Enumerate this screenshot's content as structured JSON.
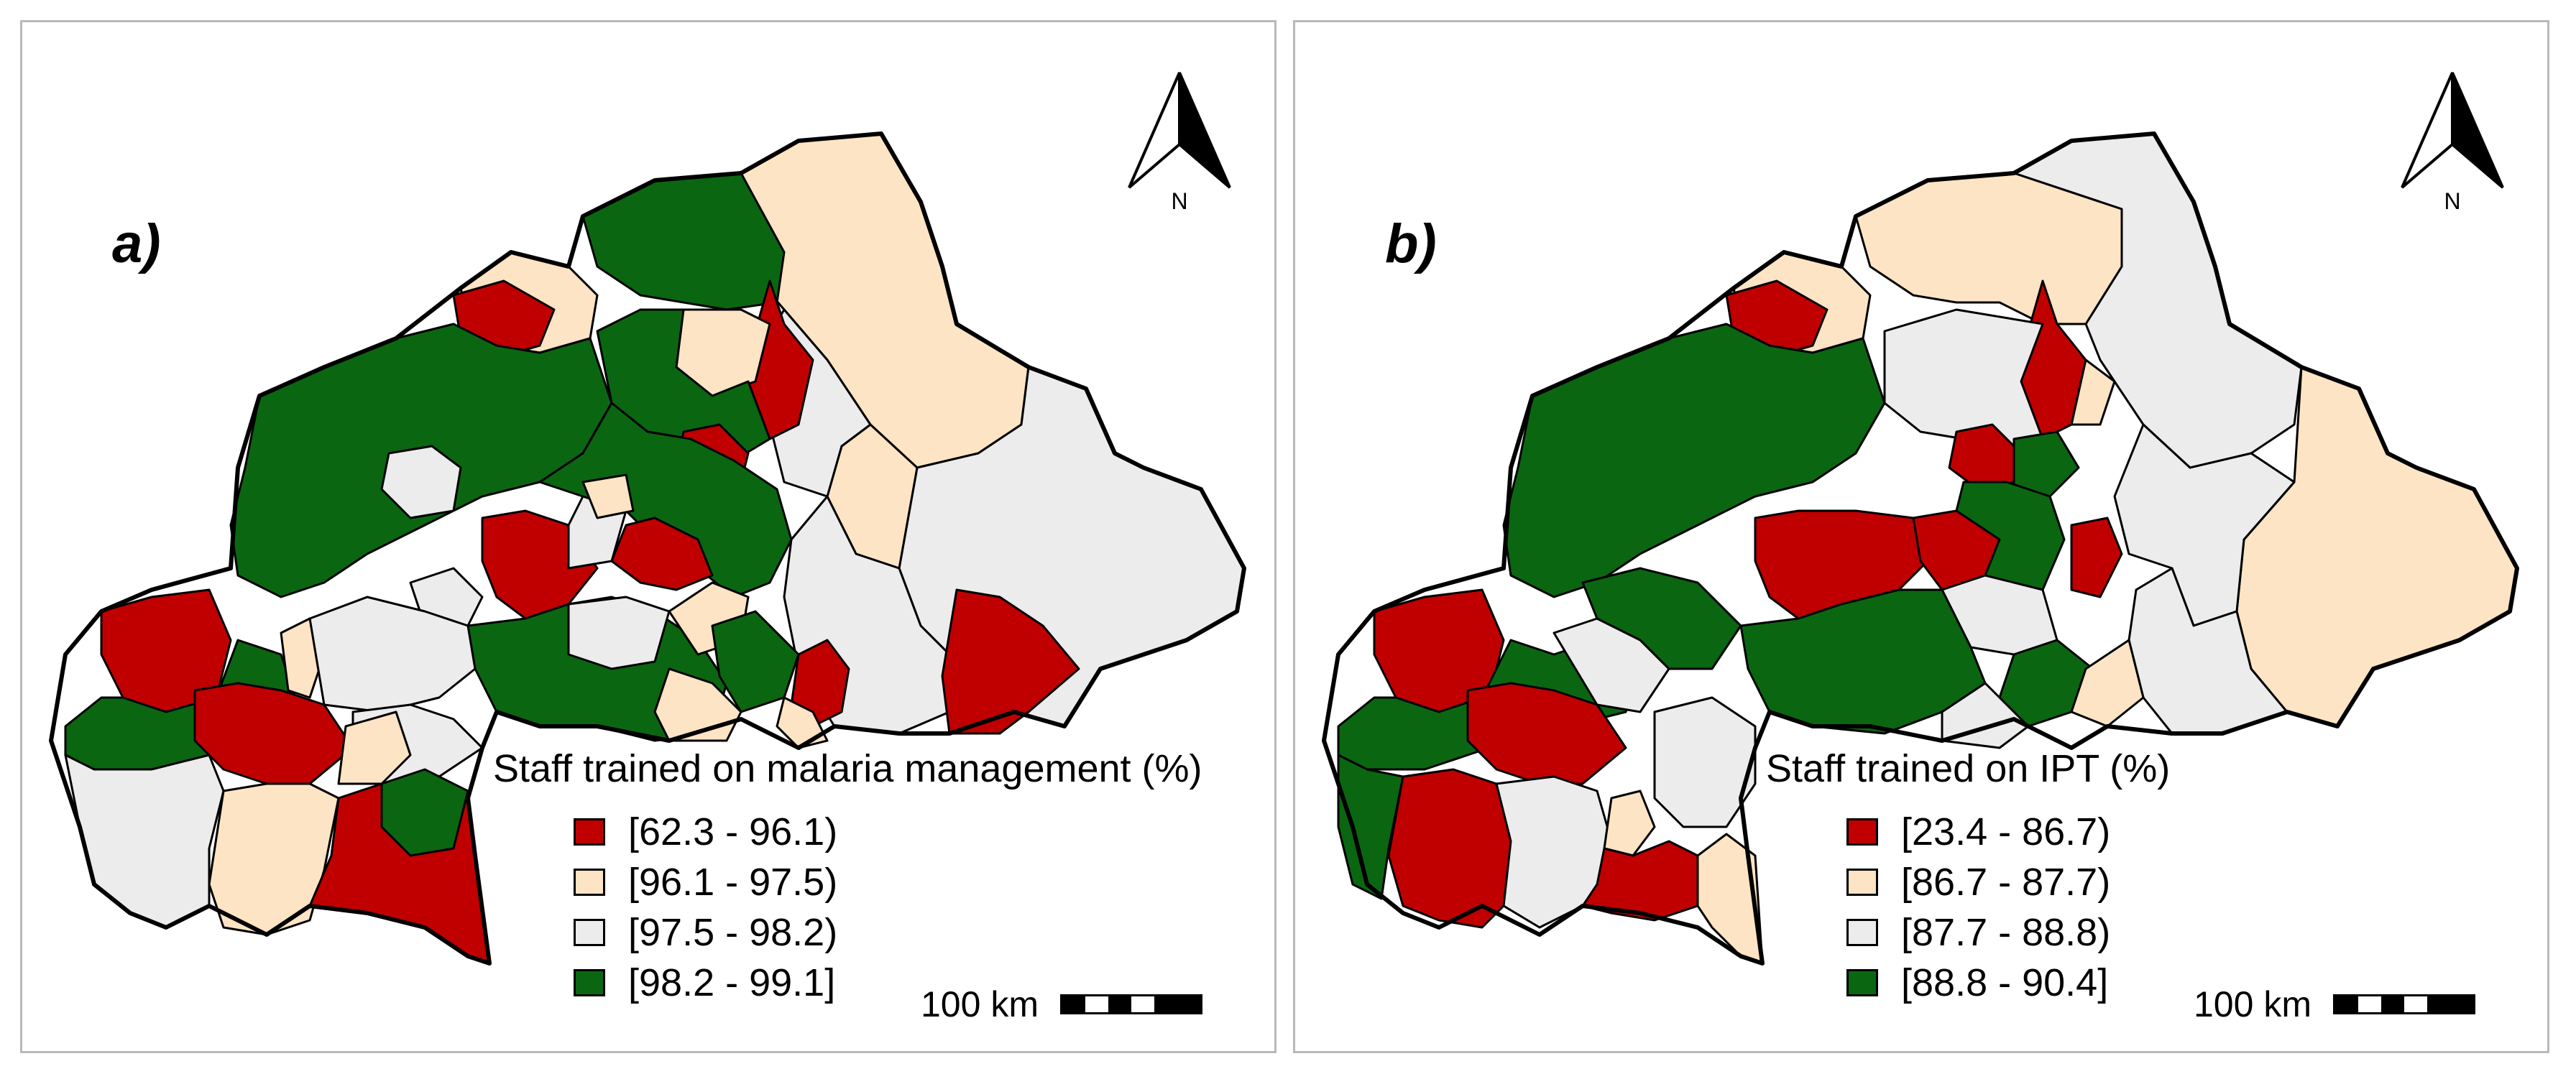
{
  "colors": {
    "red": "#c00000",
    "cream": "#fde4c4",
    "grey": "#ececec",
    "green": "#0b6611",
    "border": "#000000",
    "panel_frame": "#b9b9b9"
  },
  "north_arrow": {
    "label": "N",
    "icon": "north-arrow-icon"
  },
  "scale_bar": {
    "label": "100 km"
  },
  "panels": [
    {
      "label": "a)",
      "legend_title": "Staff trained on malaria management (%)",
      "classes": [
        {
          "range": "[62.3 - 96.1)",
          "color": "#c00000"
        },
        {
          "range": "[96.1 - 97.5)",
          "color": "#fde4c4"
        },
        {
          "range": "[97.5 - 98.2)",
          "color": "#ececec"
        },
        {
          "range": "[98.2 - 99.1]",
          "color": "#0b6611"
        }
      ]
    },
    {
      "label": "b)",
      "legend_title": "Staff trained on IPT (%)",
      "classes": [
        {
          "range": "[23.4 - 86.7)",
          "color": "#c00000"
        },
        {
          "range": "[86.7 - 87.7)",
          "color": "#fde4c4"
        },
        {
          "range": "[87.7 - 88.8)",
          "color": "#ececec"
        },
        {
          "range": "[88.8 - 90.4]",
          "color": "#0b6611"
        }
      ]
    }
  ]
}
